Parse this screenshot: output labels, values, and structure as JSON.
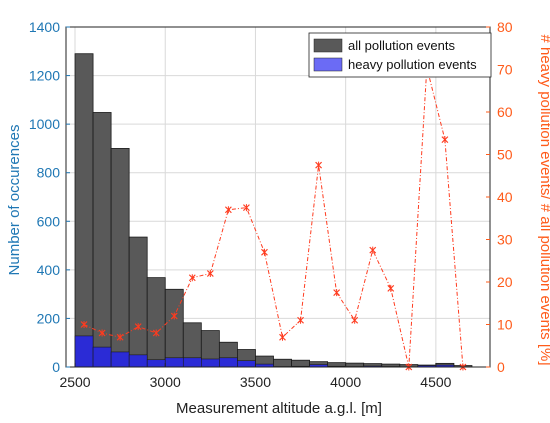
{
  "chart_data": {
    "type": "bar",
    "title": "",
    "xlabel": "Measurement altitude a.g.l. [m]",
    "ylabel_left": "Number of occurences",
    "ylabel_right": "# heavy pollution events/ # all pollution events [%]",
    "xlim": [
      2450,
      4800
    ],
    "ylim_left": [
      0,
      1400
    ],
    "ylim_right": [
      0,
      80
    ],
    "x_ticks": [
      2500,
      3000,
      3500,
      4000,
      4500
    ],
    "y_ticks_left": [
      0,
      200,
      400,
      600,
      800,
      1000,
      1200,
      1400
    ],
    "y_ticks_right": [
      0,
      10,
      20,
      30,
      40,
      50,
      60,
      70,
      80
    ],
    "grid": true,
    "legend_position": "top-right",
    "bin_width": 100,
    "bin_centers": [
      2550,
      2650,
      2750,
      2850,
      2950,
      3050,
      3150,
      3250,
      3350,
      3450,
      3550,
      3650,
      3750,
      3850,
      3950,
      4050,
      4150,
      4250,
      4350,
      4450,
      4550,
      4650
    ],
    "series": [
      {
        "name": "all pollution events",
        "axis": "left",
        "kind": "bar",
        "color": "#595959",
        "values": [
          1290,
          1048,
          900,
          535,
          368,
          320,
          182,
          150,
          102,
          72,
          45,
          32,
          28,
          22,
          18,
          16,
          14,
          12,
          10,
          8,
          15,
          6
        ]
      },
      {
        "name": "heavy pollution events",
        "axis": "left",
        "kind": "bar",
        "color": "#2b2bd6",
        "legend_color": "#6b6bf5",
        "values": [
          128,
          82,
          62,
          50,
          30,
          38,
          38,
          33,
          38,
          26,
          12,
          2,
          3,
          10,
          3,
          2,
          4,
          2,
          0,
          6,
          8,
          0
        ]
      },
      {
        "name": "",
        "axis": "right",
        "kind": "line",
        "color": "#ff3b1f",
        "values": [
          10,
          8,
          7,
          9.5,
          8,
          12,
          21,
          22,
          37,
          37.5,
          27,
          7,
          11,
          47.5,
          17.5,
          11,
          27.5,
          18.5,
          0,
          70.5,
          53.5,
          0
        ]
      }
    ]
  }
}
